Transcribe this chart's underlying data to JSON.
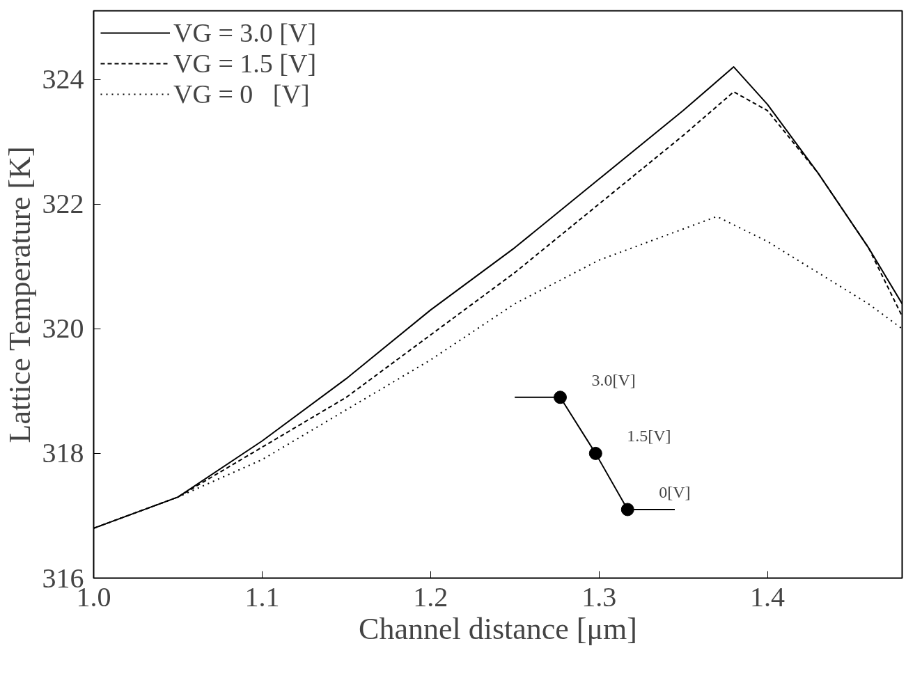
{
  "chart_data": {
    "type": "line",
    "xlabel": "Channel distance [μm]",
    "ylabel": "Lattice Temperature [K]",
    "xlim": [
      1.0,
      1.48
    ],
    "xticks": [
      {
        "value": 1.0,
        "label": "1.0"
      },
      1.1,
      1.2,
      1.3,
      1.4
    ],
    "ylim": [
      316,
      325.1
    ],
    "yticks": [
      316,
      318,
      320,
      322,
      324
    ],
    "grid": false,
    "legend": "top left",
    "marker": "none",
    "series": [
      {
        "name": "VG = 3.0 [V]",
        "color": "#000000",
        "line_style": "solid",
        "x": [
          1.0,
          1.05,
          1.1,
          1.15,
          1.2,
          1.25,
          1.3,
          1.35,
          1.38,
          1.4,
          1.43,
          1.46,
          1.48
        ],
        "values": [
          316.8,
          317.3,
          318.2,
          319.2,
          320.3,
          321.3,
          322.4,
          323.5,
          324.2,
          323.6,
          322.5,
          321.3,
          320.4
        ]
      },
      {
        "name": "VG = 1.5 [V]",
        "color": "#000000",
        "line_style": "dashed",
        "x": [
          1.0,
          1.05,
          1.1,
          1.15,
          1.2,
          1.25,
          1.3,
          1.35,
          1.38,
          1.4,
          1.43,
          1.46,
          1.48
        ],
        "values": [
          316.8,
          317.3,
          318.1,
          318.9,
          319.9,
          320.9,
          322.0,
          323.1,
          323.8,
          323.5,
          322.5,
          321.3,
          320.2
        ]
      },
      {
        "name": "VG = 0   [V]",
        "color": "#000000",
        "line_style": "dotted",
        "x": [
          1.0,
          1.05,
          1.1,
          1.15,
          1.2,
          1.25,
          1.3,
          1.35,
          1.37,
          1.4,
          1.43,
          1.46,
          1.48
        ],
        "values": [
          316.8,
          317.3,
          317.9,
          318.7,
          319.5,
          320.4,
          321.1,
          321.6,
          321.8,
          321.4,
          320.9,
          320.4,
          320.0
        ]
      },
      {
        "color": "#000000",
        "line_style": "solid",
        "x": [
          1.25,
          1.277,
          1.298,
          1.317,
          1.345
        ],
        "values": [
          318.9,
          318.9,
          318.0,
          317.1,
          317.1
        ]
      },
      {
        "type": "scatter",
        "marker": "circle",
        "color": "#000000",
        "x": [
          1.277,
          1.298,
          1.317
        ],
        "values": [
          318.9,
          318.0,
          317.1
        ]
      }
    ],
    "annotations": [
      {
        "text": "3.0[V]",
        "x": 1.277,
        "y": 318.9
      },
      {
        "text": "1.5[V]",
        "x": 1.298,
        "y": 318.0
      },
      {
        "text": "0[V]",
        "x": 1.317,
        "y": 317.1
      }
    ]
  }
}
